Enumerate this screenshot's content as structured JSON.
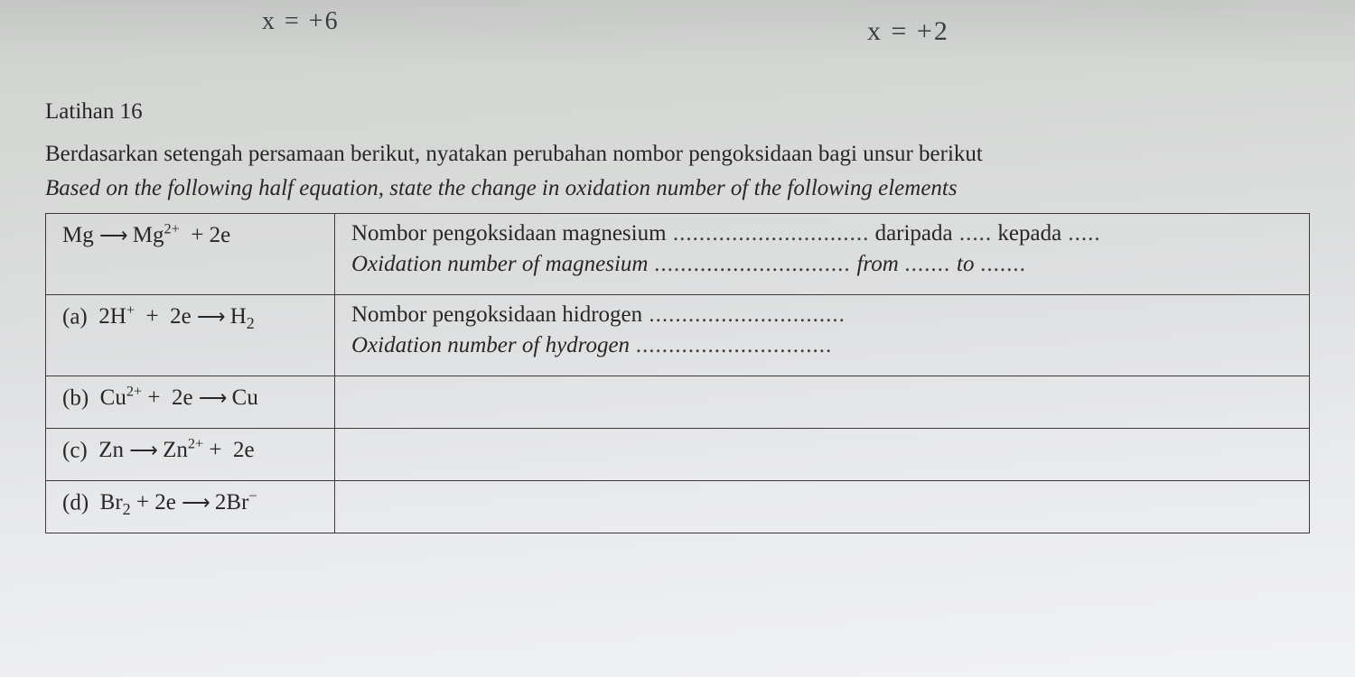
{
  "handwriting": {
    "left": "x = +6",
    "right": "x = +2"
  },
  "title": "Latihan 16",
  "instruction_ms": "Berdasarkan setengah persamaan berikut, nyatakan perubahan nombor pengoksidaan bagi unsur berikut",
  "instruction_en": "Based on the following half equation, state the change in oxidation number of the following elements",
  "rows": [
    {
      "label": "",
      "eq_html": "Mg <span class='arrow'>⟶</span> Mg<sup>2+</sup> &nbsp;+ 2e",
      "desc_ms": "Nombor pengoksidaan magnesium",
      "desc_en": "Oxidation number of magnesium",
      "daripada": "daripada",
      "kepada": "kepada",
      "from": "from",
      "to": "to"
    },
    {
      "label": "(a)",
      "eq_html": "2H<sup>+</sup> &nbsp;+&nbsp; 2e <span class='arrow'>⟶</span> H<sub>2</sub>",
      "desc_ms": "Nombor pengoksidaan hidrogen",
      "desc_en": "Oxidation number of hydrogen"
    },
    {
      "label": "(b)",
      "eq_html": "Cu<sup>2+</sup> +&nbsp; 2e <span class='arrow'>⟶</span> Cu"
    },
    {
      "label": "(c)",
      "eq_html": "Zn <span class='arrow'>⟶</span> Zn<sup>2+</sup> +&nbsp; 2e"
    },
    {
      "label": "(d)",
      "eq_html": "Br<sub>2</sub> + 2e <span class='arrow'>⟶</span> 2Br<sup>−</sup>"
    }
  ]
}
